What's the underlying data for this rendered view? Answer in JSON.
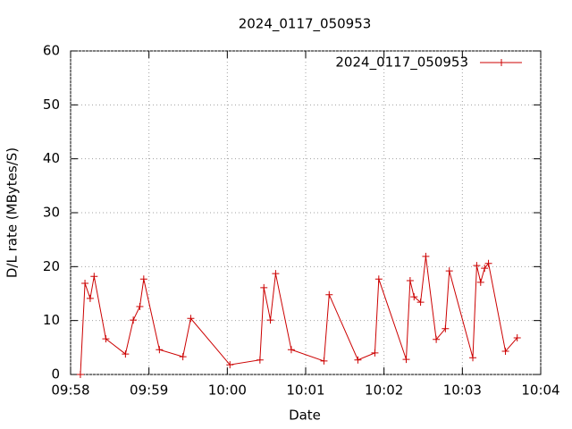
{
  "chart_data": {
    "type": "line",
    "title": "2024_0117_050953",
    "x_label": "Date",
    "y_label": "D/L rate (MBytes/S)",
    "x": [
      7.5,
      11,
      15,
      18,
      27,
      42,
      48,
      53,
      56,
      68,
      86,
      92,
      122,
      145,
      148,
      153,
      157,
      169,
      194,
      198,
      220,
      233,
      236,
      257,
      260,
      263,
      268,
      272,
      280,
      287,
      290,
      308,
      311,
      314,
      317,
      320,
      333,
      342
    ],
    "series": [
      {
        "name": "2024_0117_050953",
        "color": "#cc0000",
        "values": [
          0,
          16.9,
          14.1,
          18.2,
          6.6,
          3.8,
          10.1,
          12.6,
          17.7,
          4.6,
          3.3,
          10.4,
          1.8,
          2.7,
          16.1,
          10.1,
          18.7,
          4.6,
          2.5,
          14.8,
          2.7,
          4.0,
          17.7,
          2.8,
          17.4,
          14.4,
          13.4,
          21.9,
          6.5,
          8.5,
          19.2,
          3.1,
          20.2,
          17.1,
          19.7,
          20.6,
          4.3,
          6.8
        ]
      }
    ],
    "xlim": [
      0,
      360
    ],
    "xticks": [
      {
        "value": 0,
        "label": "09:58"
      },
      {
        "value": 60,
        "label": "09:59"
      },
      {
        "value": 120,
        "label": "10:00"
      },
      {
        "value": 180,
        "label": "10:01"
      },
      {
        "value": 240,
        "label": "10:02"
      },
      {
        "value": 300,
        "label": "10:03"
      },
      {
        "value": 360,
        "label": "10:04"
      }
    ],
    "ylim": [
      0,
      60
    ],
    "yticks": [
      0,
      10,
      20,
      30,
      40,
      50,
      60
    ],
    "grid": true,
    "legend": "top-right"
  }
}
